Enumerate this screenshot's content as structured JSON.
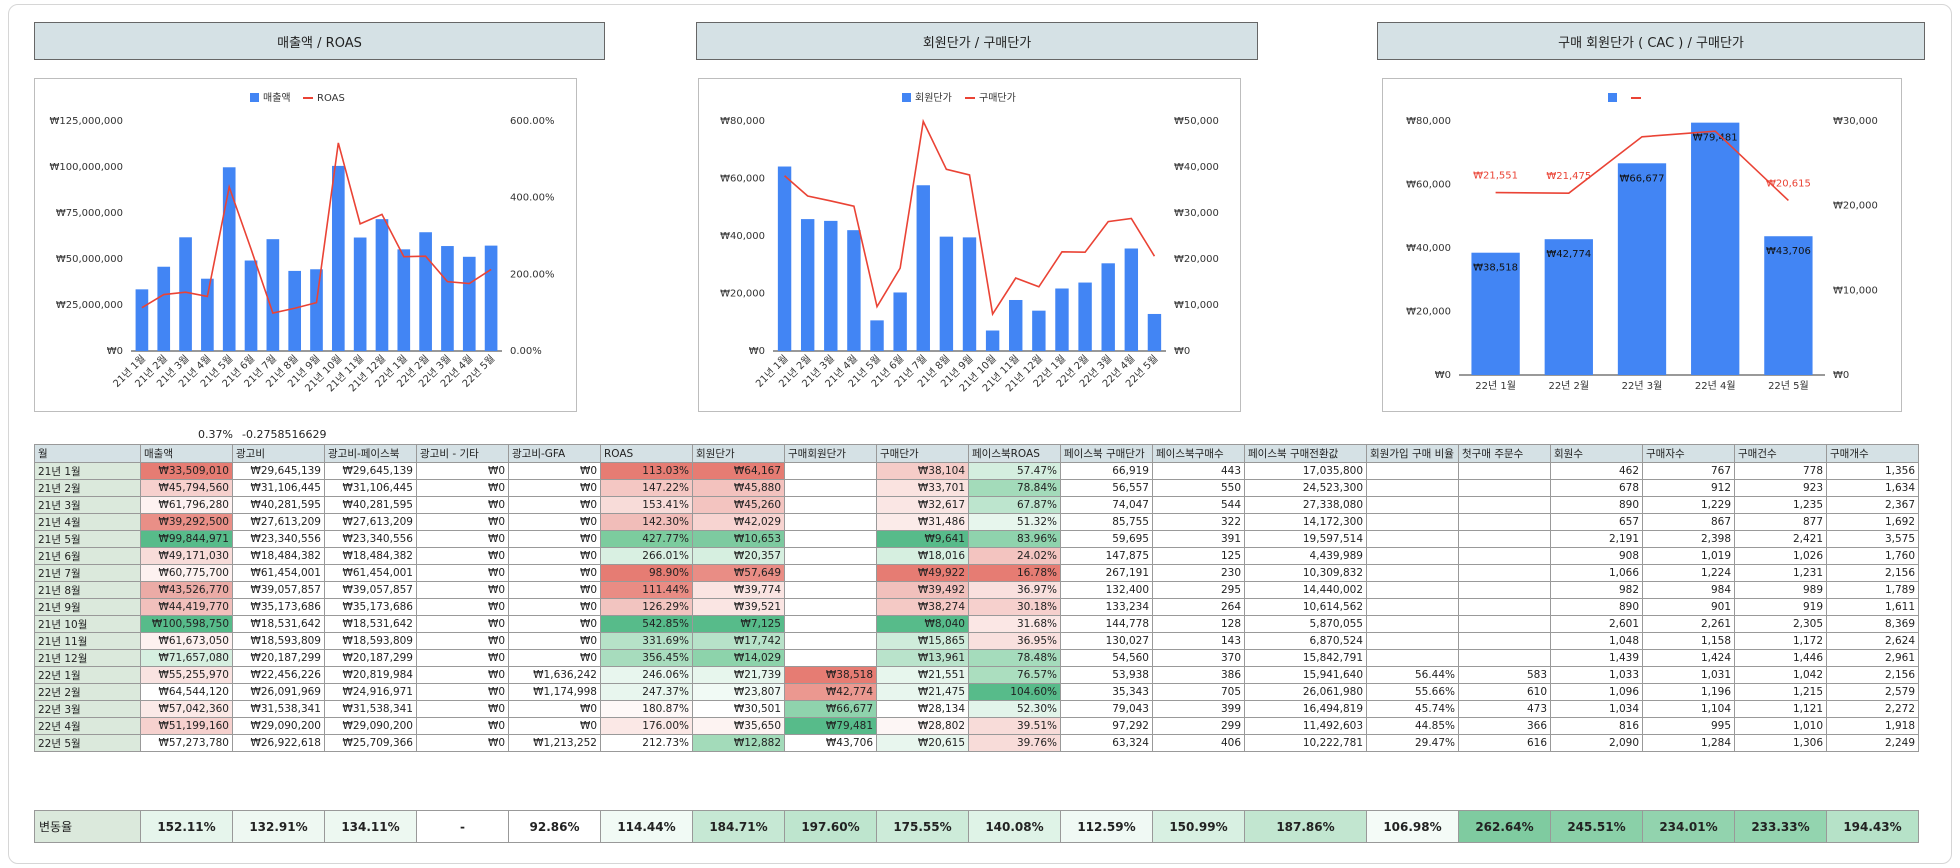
{
  "chart_titles": [
    "매출액 / ROAS",
    "회원단가 / 구매단가",
    "구매 회원단가 ( CAC ) / 구매단가"
  ],
  "chart_data": [
    {
      "type": "bar",
      "title": "",
      "categories": [
        "21년 1월",
        "21년 2월",
        "21년 3월",
        "21년 4월",
        "21년 5월",
        "21년 6월",
        "21년 7월",
        "21년 8월",
        "21년 9월",
        "21년 10월",
        "21년 11월",
        "21년 12월",
        "22년 1월",
        "22년 2월",
        "22년 3월",
        "22년 4월",
        "22년 5월"
      ],
      "series": [
        {
          "name": "매출액",
          "type": "bar",
          "axis": "left",
          "values": [
            33509010,
            45794560,
            61796280,
            39292500,
            99844971,
            49171030,
            60775700,
            43526770,
            44419770,
            100598750,
            61673050,
            71657080,
            55255970,
            64544120,
            57042360,
            51199160,
            57273780
          ]
        },
        {
          "name": "ROAS",
          "type": "line",
          "axis": "right",
          "values": [
            113.03,
            147.22,
            153.41,
            142.3,
            427.77,
            266.01,
            98.9,
            111.44,
            126.29,
            542.85,
            331.69,
            356.45,
            246.06,
            247.37,
            180.87,
            176.0,
            212.73
          ]
        }
      ],
      "left_ticks": [
        "₩0",
        "₩25,000,000",
        "₩50,000,000",
        "₩75,000,000",
        "₩100,000,000",
        "₩125,000,000"
      ],
      "right_ticks": [
        "0.00%",
        "200.00%",
        "400.00%",
        "600.00%"
      ],
      "left_max": 125000000,
      "right_max": 600,
      "legend": "top",
      "colors": {
        "bar": "#4285f4",
        "line": "#ea4335"
      }
    },
    {
      "type": "bar",
      "title": "",
      "categories": [
        "21년 1월",
        "21년 2월",
        "21년 3월",
        "21년 4월",
        "21년 5월",
        "21년 6월",
        "21년 7월",
        "21년 8월",
        "21년 9월",
        "21년 10월",
        "21년 11월",
        "21년 12월",
        "22년 1월",
        "22년 2월",
        "22년 3월",
        "22년 4월",
        "22년 5월"
      ],
      "series": [
        {
          "name": "회원단가",
          "type": "bar",
          "axis": "left",
          "values": [
            64167,
            45880,
            45260,
            42029,
            10653,
            20357,
            57649,
            39774,
            39521,
            7125,
            17742,
            14029,
            21739,
            23807,
            30501,
            35650,
            12882
          ]
        },
        {
          "name": "구매단가",
          "type": "line",
          "axis": "right",
          "values": [
            38104,
            33701,
            32617,
            31486,
            9641,
            18016,
            49922,
            39492,
            38274,
            8040,
            15865,
            13961,
            21551,
            21475,
            28134,
            28802,
            20615
          ]
        }
      ],
      "left_ticks": [
        "₩0",
        "₩20,000",
        "₩40,000",
        "₩60,000",
        "₩80,000"
      ],
      "right_ticks": [
        "₩0",
        "₩10,000",
        "₩20,000",
        "₩30,000",
        "₩40,000",
        "₩50,000"
      ],
      "left_max": 80000,
      "right_max": 50000,
      "legend": "top",
      "colors": {
        "bar": "#4285f4",
        "line": "#ea4335"
      }
    },
    {
      "type": "bar",
      "title": "",
      "categories": [
        "22년 1월",
        "22년 2월",
        "22년 3월",
        "22년 4월",
        "22년 5월"
      ],
      "series": [
        {
          "type": "bar",
          "axis": "left",
          "values": [
            38518,
            42774,
            66677,
            79481,
            43706
          ],
          "labels": [
            "₩38,518",
            "₩42,774",
            "₩66,677",
            "₩79,481",
            "₩43,706"
          ]
        },
        {
          "type": "line",
          "axis": "right",
          "values": [
            21551,
            21475,
            28134,
            28802,
            20615
          ],
          "labels": [
            "₩21,551",
            "₩21,475",
            "",
            "",
            "₩20,615"
          ]
        }
      ],
      "left_ticks": [
        "₩0",
        "₩20,000",
        "₩40,000",
        "₩60,000",
        "₩80,000"
      ],
      "right_ticks": [
        "₩0",
        "₩10,000",
        "₩20,000",
        "₩30,000"
      ],
      "left_max": 80000,
      "right_max": 30000,
      "legend": "top",
      "colors": {
        "bar": "#4285f4",
        "line": "#ea4335"
      }
    }
  ],
  "notes": [
    "0.37%",
    "-0.2758516629"
  ],
  "table": {
    "headers": [
      "월",
      "매출액",
      "광고비",
      "광고비-페이스북",
      "광고비 - 기타",
      "광고비-GFA",
      "ROAS",
      "회원단가",
      "구매회원단가",
      "구매단가",
      "페이스북ROAS",
      "페이스북 구매단가",
      "페이스북구매수",
      "페이스북 구매전환값",
      "회원가입 구매 비율",
      "첫구매 주문수",
      "회원수",
      "구매자수",
      "구매건수",
      "구매개수"
    ],
    "rows": [
      [
        "21년 1월",
        "₩33,509,010",
        "₩29,645,139",
        "₩29,645,139",
        "₩0",
        "₩0",
        "113.03%",
        "₩64,167",
        "",
        "₩38,104",
        "57.47%",
        "66,919",
        "443",
        "17,035,800",
        "",
        "",
        "462",
        "767",
        "778",
        "1,356"
      ],
      [
        "21년 2월",
        "₩45,794,560",
        "₩31,106,445",
        "₩31,106,445",
        "₩0",
        "₩0",
        "147.22%",
        "₩45,880",
        "",
        "₩33,701",
        "78.84%",
        "56,557",
        "550",
        "24,523,300",
        "",
        "",
        "678",
        "912",
        "923",
        "1,634"
      ],
      [
        "21년 3월",
        "₩61,796,280",
        "₩40,281,595",
        "₩40,281,595",
        "₩0",
        "₩0",
        "153.41%",
        "₩45,260",
        "",
        "₩32,617",
        "67.87%",
        "74,047",
        "544",
        "27,338,080",
        "",
        "",
        "890",
        "1,229",
        "1,235",
        "2,367"
      ],
      [
        "21년 4월",
        "₩39,292,500",
        "₩27,613,209",
        "₩27,613,209",
        "₩0",
        "₩0",
        "142.30%",
        "₩42,029",
        "",
        "₩31,486",
        "51.32%",
        "85,755",
        "322",
        "14,172,300",
        "",
        "",
        "657",
        "867",
        "877",
        "1,692"
      ],
      [
        "21년 5월",
        "₩99,844,971",
        "₩23,340,556",
        "₩23,340,556",
        "₩0",
        "₩0",
        "427.77%",
        "₩10,653",
        "",
        "₩9,641",
        "83.96%",
        "59,695",
        "391",
        "19,597,514",
        "",
        "",
        "2,191",
        "2,398",
        "2,421",
        "3,575"
      ],
      [
        "21년 6월",
        "₩49,171,030",
        "₩18,484,382",
        "₩18,484,382",
        "₩0",
        "₩0",
        "266.01%",
        "₩20,357",
        "",
        "₩18,016",
        "24.02%",
        "147,875",
        "125",
        "4,439,989",
        "",
        "",
        "908",
        "1,019",
        "1,026",
        "1,760"
      ],
      [
        "21년 7월",
        "₩60,775,700",
        "₩61,454,001",
        "₩61,454,001",
        "₩0",
        "₩0",
        "98.90%",
        "₩57,649",
        "",
        "₩49,922",
        "16.78%",
        "267,191",
        "230",
        "10,309,832",
        "",
        "",
        "1,066",
        "1,224",
        "1,231",
        "2,156"
      ],
      [
        "21년 8월",
        "₩43,526,770",
        "₩39,057,857",
        "₩39,057,857",
        "₩0",
        "₩0",
        "111.44%",
        "₩39,774",
        "",
        "₩39,492",
        "36.97%",
        "132,400",
        "295",
        "14,440,002",
        "",
        "",
        "982",
        "984",
        "989",
        "1,789"
      ],
      [
        "21년 9월",
        "₩44,419,770",
        "₩35,173,686",
        "₩35,173,686",
        "₩0",
        "₩0",
        "126.29%",
        "₩39,521",
        "",
        "₩38,274",
        "30.18%",
        "133,234",
        "264",
        "10,614,562",
        "",
        "",
        "890",
        "901",
        "919",
        "1,611"
      ],
      [
        "21년 10월",
        "₩100,598,750",
        "₩18,531,642",
        "₩18,531,642",
        "₩0",
        "₩0",
        "542.85%",
        "₩7,125",
        "",
        "₩8,040",
        "31.68%",
        "144,778",
        "128",
        "5,870,055",
        "",
        "",
        "2,601",
        "2,261",
        "2,305",
        "8,369"
      ],
      [
        "21년 11월",
        "₩61,673,050",
        "₩18,593,809",
        "₩18,593,809",
        "₩0",
        "₩0",
        "331.69%",
        "₩17,742",
        "",
        "₩15,865",
        "36.95%",
        "130,027",
        "143",
        "6,870,524",
        "",
        "",
        "1,048",
        "1,158",
        "1,172",
        "2,624"
      ],
      [
        "21년 12월",
        "₩71,657,080",
        "₩20,187,299",
        "₩20,187,299",
        "₩0",
        "₩0",
        "356.45%",
        "₩14,029",
        "",
        "₩13,961",
        "78.48%",
        "54,560",
        "370",
        "15,842,791",
        "",
        "",
        "1,439",
        "1,424",
        "1,446",
        "2,961"
      ],
      [
        "22년 1월",
        "₩55,255,970",
        "₩22,456,226",
        "₩20,819,984",
        "₩0",
        "₩1,636,242",
        "246.06%",
        "₩21,739",
        "₩38,518",
        "₩21,551",
        "76.57%",
        "53,938",
        "386",
        "15,941,640",
        "56.44%",
        "583",
        "1,033",
        "1,031",
        "1,042",
        "2,156"
      ],
      [
        "22년 2월",
        "₩64,544,120",
        "₩26,091,969",
        "₩24,916,971",
        "₩0",
        "₩1,174,998",
        "247.37%",
        "₩23,807",
        "₩42,774",
        "₩21,475",
        "104.60%",
        "35,343",
        "705",
        "26,061,980",
        "55.66%",
        "610",
        "1,096",
        "1,196",
        "1,215",
        "2,579"
      ],
      [
        "22년 3월",
        "₩57,042,360",
        "₩31,538,341",
        "₩31,538,341",
        "₩0",
        "₩0",
        "180.87%",
        "₩30,501",
        "₩66,677",
        "₩28,134",
        "52.30%",
        "79,043",
        "399",
        "16,494,819",
        "45.74%",
        "473",
        "1,034",
        "1,104",
        "1,121",
        "2,272"
      ],
      [
        "22년 4월",
        "₩51,199,160",
        "₩29,090,200",
        "₩29,090,200",
        "₩0",
        "₩0",
        "176.00%",
        "₩35,650",
        "₩79,481",
        "₩28,802",
        "39.51%",
        "97,292",
        "299",
        "11,492,603",
        "44.85%",
        "366",
        "816",
        "995",
        "1,010",
        "1,918"
      ],
      [
        "22년 5월",
        "₩57,273,780",
        "₩26,922,618",
        "₩25,709,366",
        "₩0",
        "₩1,213,252",
        "212.73%",
        "₩12,882",
        "₩43,706",
        "₩20,615",
        "39.76%",
        "63,324",
        "406",
        "10,222,781",
        "29.47%",
        "616",
        "2,090",
        "1,284",
        "1,306",
        "2,249"
      ]
    ],
    "fills": {
      "1": [
        "#e67c73",
        "#f6d0cd",
        "#fdf2f1",
        "#e98f87",
        "#57bb8a",
        "#f8dcd9",
        "#fdf1f0",
        "#ebabA6",
        "#f1c0bc",
        "#57bb8a",
        "#fdf1f0",
        "#d6efe0",
        "#f9e3e1",
        "#ffffff",
        "#fbe9e7",
        "#f6d1ce",
        "#ffffff"
      ],
      "6": [
        "#e67c73",
        "#f4c7c3",
        "#f8dcd9",
        "#f1bdb9",
        "#7ccc9e",
        "#d9f0e2",
        "#e67c73",
        "#e98c84",
        "#f2c4c0",
        "#57bb8a",
        "#b6e2c8",
        "#a7dcbd",
        "#e8f6ee",
        "#e8f6ee",
        "#fef8f7",
        "#fbe8e6",
        "#ffffff"
      ],
      "7": [
        "#e67c73",
        "#f3c2be",
        "#f3c4c0",
        "#f7d4d1",
        "#7dcaa0",
        "#d6efe0",
        "#e98d85",
        "#fae4e2",
        "#fae5e3",
        "#57bb8a",
        "#b7e2c9",
        "#8dd3ab",
        "#e7f6ed",
        "#f1faf5",
        "#ffffff",
        "#fdf3f2",
        "#a3dbba"
      ],
      "8": [
        "",
        "",
        "",
        "",
        "",
        "",
        "",
        "",
        "",
        "",
        "",
        "",
        "#e67c73",
        "#eb9890",
        "#8fd3ad",
        "#57bb8a",
        "#ffffff"
      ],
      "9": [
        "#f5ccc8",
        "#fae3e0",
        "#faE6e4",
        "#fbebe9",
        "#57bb8a",
        "#d6efe0",
        "#e67c73",
        "#f1c0bc",
        "#f4c9c5",
        "#57bb8a",
        "#cfecdb",
        "#b9e3cb",
        "#e7f6ed",
        "#e8f6ee",
        "#ffffff",
        "#fdf6f5",
        "#e8f6ee"
      ],
      "10": [
        "#d4eedf",
        "#a3dbba",
        "#bde5ce",
        "#e7f6ed",
        "#8fd3ad",
        "#f3c4c0",
        "#e67c73",
        "#f9e0de",
        "#f6d0cd",
        "#fbe7e5",
        "#f9e0de",
        "#a5dcbc",
        "#abdebf",
        "#57bb8a",
        "#e2f4ea",
        "#f8dcd9",
        "#f8dcd9"
      ]
    },
    "rate_label": "변동율",
    "rates": [
      "152.11%",
      "132.91%",
      "134.11%",
      "-",
      "92.86%",
      "114.44%",
      "184.71%",
      "197.60%",
      "175.55%",
      "140.08%",
      "112.59%",
      "150.99%",
      "187.86%",
      "106.98%",
      "262.64%",
      "245.51%",
      "234.01%",
      "233.33%",
      "194.43%"
    ],
    "rate_fills": [
      "#e6f5ec",
      "#eef8f2",
      "#edf8f1",
      "#ffffff",
      "#ffffff",
      "#f1faf5",
      "#c6e8d4",
      "#bee5ce",
      "#cdebd9",
      "#dff3e7",
      "#f0f9f4",
      "#d8f0e2",
      "#c2e6d0",
      "#f4fbf7",
      "#7fcba0",
      "#8ad0a8",
      "#92d3ae",
      "#93d4af",
      "#b6e2c8"
    ]
  }
}
